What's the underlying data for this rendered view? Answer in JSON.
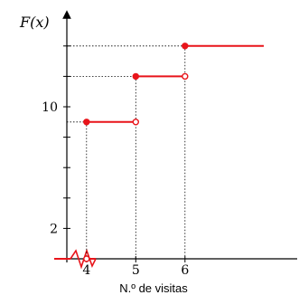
{
  "chart_data": {
    "type": "line",
    "chart_kind": "step cumulative distribution function",
    "ylabel": "F(x)",
    "xlabel": "N.º de visitas",
    "x_ticks": [
      4,
      5,
      6
    ],
    "y_tick_labels": [
      "2",
      "10"
    ],
    "y_tick_values": [
      2,
      4,
      6,
      8,
      10,
      12,
      14
    ],
    "axis_break_x": true,
    "xlim": [
      3.1,
      7.9
    ],
    "ylim": [
      0,
      16
    ],
    "series": [
      {
        "steps": [
          {
            "x_start": 3.1,
            "x_end": 4,
            "y": 0
          },
          {
            "x_start": 4,
            "x_end": 5,
            "y": 9
          },
          {
            "x_start": 5,
            "x_end": 6,
            "y": 12
          },
          {
            "x_start": 6,
            "x_end": 7.6,
            "y": 14
          }
        ]
      }
    ],
    "line_color": "#e8141a",
    "guide_lines": "dotted"
  }
}
